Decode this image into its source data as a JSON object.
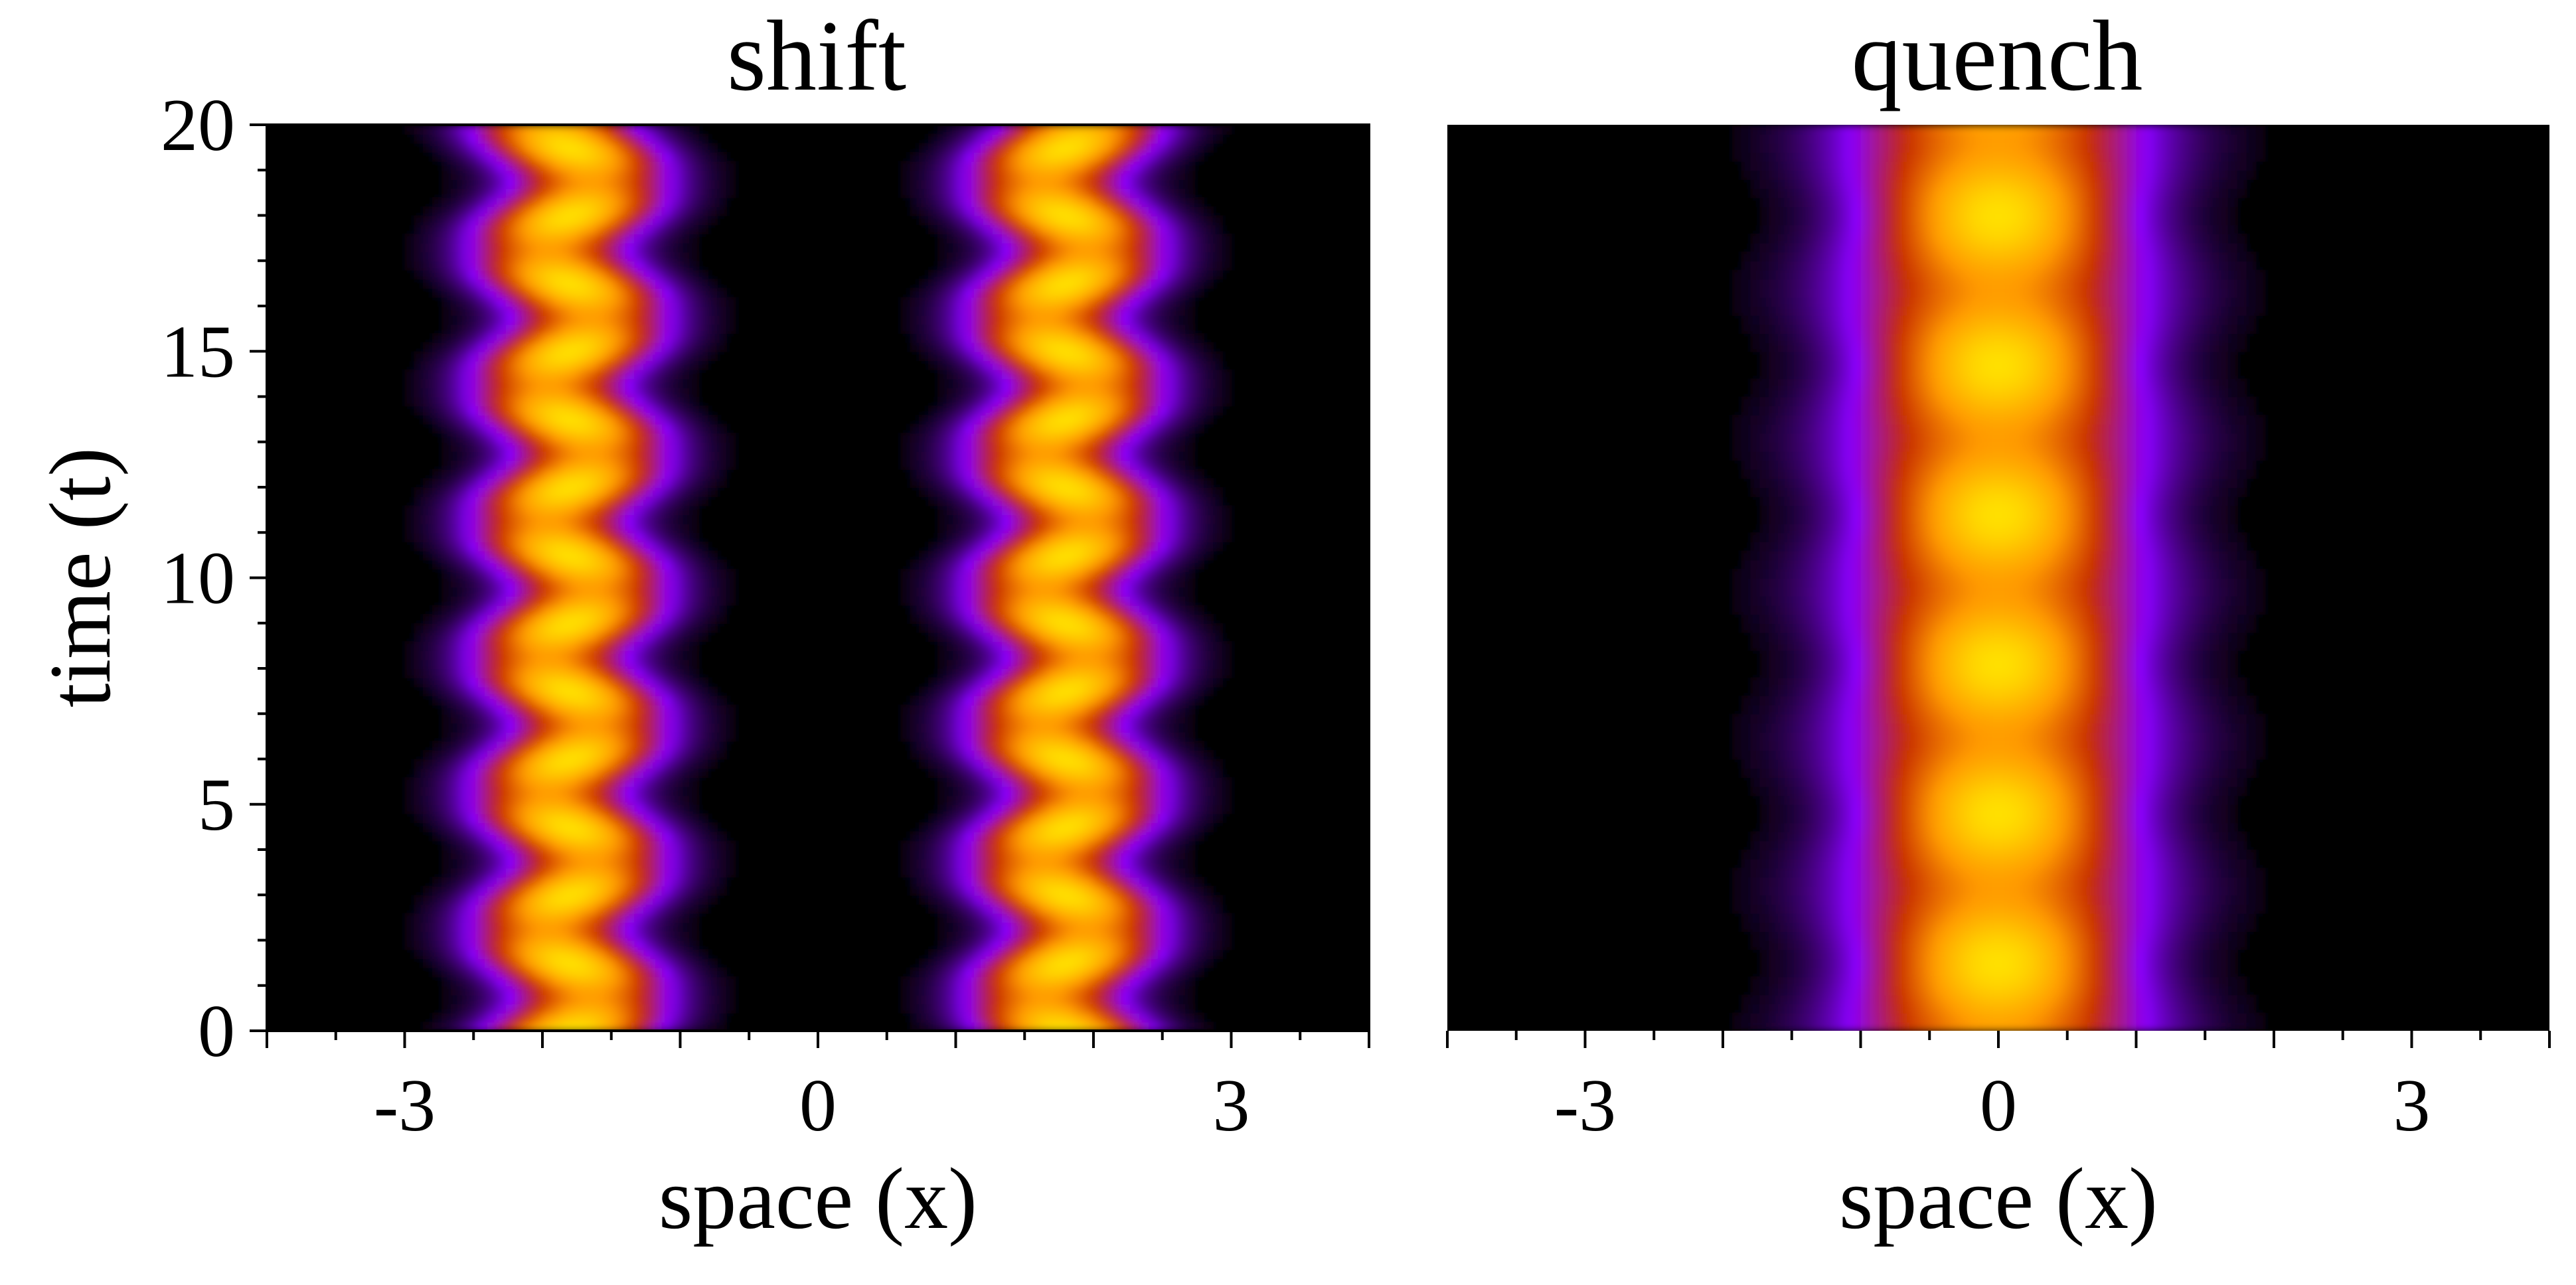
{
  "chart_data": [
    {
      "type": "heatmap",
      "title": "shift",
      "xlabel": "space (x)",
      "ylabel": "time (t)",
      "xlim": [
        -4,
        4
      ],
      "ylim": [
        0,
        20
      ],
      "xticks": [
        -3,
        0,
        3
      ],
      "xtick_labels": [
        "-3",
        "0",
        "3"
      ],
      "yticks": [
        0,
        5,
        10,
        15,
        20
      ],
      "ytick_labels": [
        "0",
        "5",
        "10",
        "15",
        "20"
      ],
      "colormap": [
        "#000000",
        "#8a00ff",
        "#c83000",
        "#ff9a00",
        "#ffe000"
      ],
      "features": {
        "density_peaks_x": [
          -1.8,
          1.8
        ],
        "peak_width": 0.55,
        "oscillation_amplitude": 0.15,
        "oscillation_period": 3.0
      }
    },
    {
      "type": "heatmap",
      "title": "quench",
      "xlabel": "space (x)",
      "ylabel": "",
      "xlim": [
        -4,
        4
      ],
      "ylim": [
        0,
        20
      ],
      "xticks": [
        -3,
        0,
        3
      ],
      "xtick_labels": [
        "-3",
        "0",
        "3"
      ],
      "yticks": [
        0,
        5,
        10,
        15,
        20
      ],
      "colormap": [
        "#000000",
        "#8a00ff",
        "#c83000",
        "#ff9a00",
        "#ffe000"
      ],
      "features": {
        "density_peaks_x": [
          0
        ],
        "breathing_period": 3.3,
        "brightest_t": [
          1.5,
          4.8,
          8.1,
          11.4,
          14.7,
          18.0
        ]
      }
    }
  ]
}
